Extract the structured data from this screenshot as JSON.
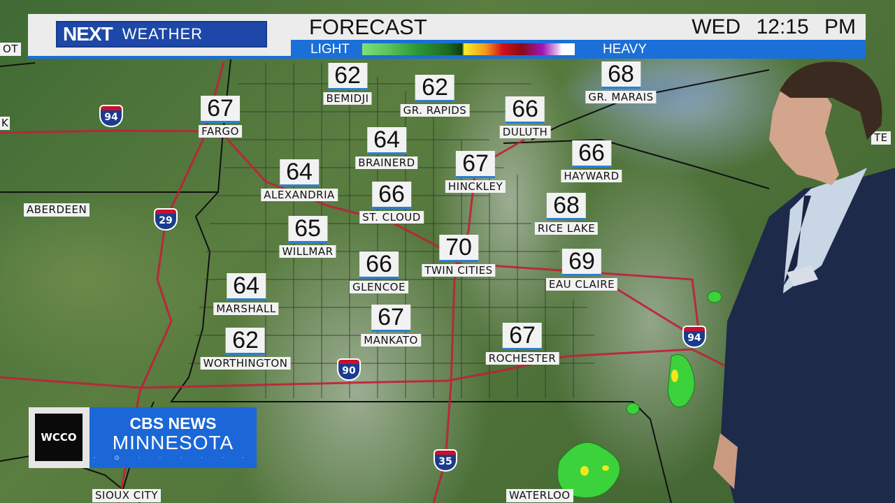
{
  "header": {
    "logo_next": "NEXT",
    "logo_weather": "WEATHER",
    "title": "FORECAST",
    "day": "WED",
    "time": "12:15 PM",
    "legend_light": "LIGHT",
    "legend_heavy": "HEAVY",
    "legend_colors": [
      "#7fe07a",
      "#2f9a36",
      "#0e3b12",
      "#f4f02a",
      "#f39a1a",
      "#d0121a",
      "#8a0a14",
      "#a016b8",
      "#ffffff"
    ]
  },
  "cities": [
    {
      "name": "BEMIDJI",
      "temp": "62"
    },
    {
      "name": "GR. RAPIDS",
      "temp": "62"
    },
    {
      "name": "GR. MARAIS",
      "temp": "68"
    },
    {
      "name": "FARGO",
      "temp": "67"
    },
    {
      "name": "DULUTH",
      "temp": "66"
    },
    {
      "name": "BRAINERD",
      "temp": "64"
    },
    {
      "name": "HINCKLEY",
      "temp": "67"
    },
    {
      "name": "HAYWARD",
      "temp": "66"
    },
    {
      "name": "ALEXANDRIA",
      "temp": "64"
    },
    {
      "name": "ST. CLOUD",
      "temp": "66"
    },
    {
      "name": "RICE LAKE",
      "temp": "68"
    },
    {
      "name": "WILLMAR",
      "temp": "65"
    },
    {
      "name": "TWIN CITIES",
      "temp": "70"
    },
    {
      "name": "EAU CLAIRE",
      "temp": "69"
    },
    {
      "name": "GLENCOE",
      "temp": "66"
    },
    {
      "name": "MARSHALL",
      "temp": "64"
    },
    {
      "name": "MANKATO",
      "temp": "67"
    },
    {
      "name": "ROCHESTER",
      "temp": "67"
    },
    {
      "name": "WORTHINGTON",
      "temp": "62"
    }
  ],
  "labels": {
    "aberdeen": "ABERDEEN",
    "ot": "OT",
    "k": "K",
    "te": "TE",
    "sioux_city": "SIOUX CITY",
    "waterloo": "WATERLOO"
  },
  "interstates": [
    "94",
    "29",
    "90",
    "35",
    "94"
  ],
  "branding": {
    "station": "WCCO",
    "network": "CBS NEWS",
    "region": "MINNESOTA",
    "dots": "· ⊙ · · · · · ·"
  }
}
